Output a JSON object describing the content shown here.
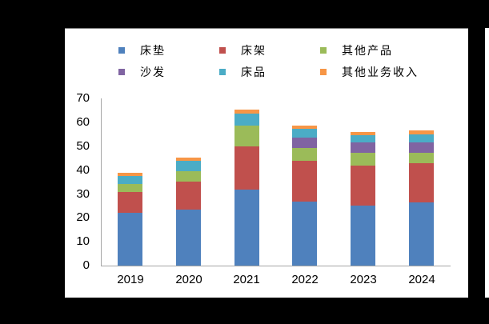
{
  "chart_data": {
    "type": "bar",
    "stacked": true,
    "title": "",
    "xlabel": "",
    "ylabel": "",
    "ylim": [
      0,
      70
    ],
    "yticks": [
      0,
      10,
      20,
      30,
      40,
      50,
      60,
      70
    ],
    "grid": false,
    "legend_position": "top",
    "categories": [
      "2019",
      "2020",
      "2021",
      "2022",
      "2023",
      "2024"
    ],
    "series": [
      {
        "name": "床垫",
        "color": "#4F81BD",
        "values": [
          22.1,
          23.4,
          31.8,
          26.9,
          25.2,
          26.4
        ]
      },
      {
        "name": "床架",
        "color": "#C0504D",
        "values": [
          8.8,
          11.9,
          18.0,
          17.0,
          16.8,
          16.6
        ]
      },
      {
        "name": "其他产品",
        "color": "#9BBB59",
        "values": [
          3.3,
          4.1,
          8.9,
          5.2,
          5.1,
          4.3
        ]
      },
      {
        "name": "沙发",
        "color": "#8064A2",
        "values": [
          0,
          0,
          0,
          4.5,
          4.4,
          4.4
        ]
      },
      {
        "name": "床品",
        "color": "#4BACC6",
        "values": [
          3.4,
          4.5,
          5.0,
          3.8,
          3.2,
          3.1
        ]
      },
      {
        "name": "其他业务收入",
        "color": "#F79646",
        "values": [
          1.2,
          1.2,
          1.5,
          1.1,
          1.4,
          1.7
        ]
      }
    ]
  },
  "legend": {
    "items": [
      {
        "label": "床垫",
        "color": "#4F81BD"
      },
      {
        "label": "床架",
        "color": "#C0504D"
      },
      {
        "label": "其他产品",
        "color": "#9BBB59"
      },
      {
        "label": "沙发",
        "color": "#8064A2"
      },
      {
        "label": "床品",
        "color": "#4BACC6"
      },
      {
        "label": "其他业务收入",
        "color": "#F79646"
      }
    ]
  },
  "axes": {
    "y_labels": [
      "0",
      "10",
      "20",
      "30",
      "40",
      "50",
      "60",
      "70"
    ],
    "x_labels": [
      "2019",
      "2020",
      "2021",
      "2022",
      "2023",
      "2024"
    ]
  }
}
